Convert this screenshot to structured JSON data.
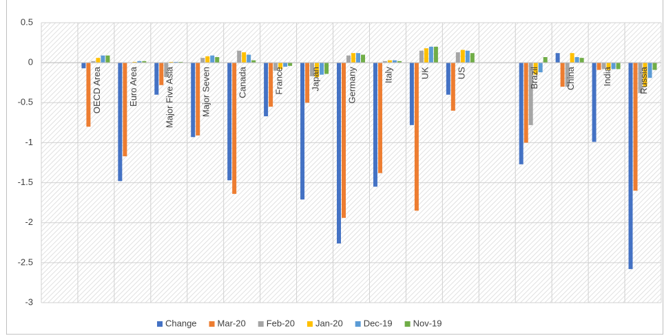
{
  "chart_data": {
    "type": "bar",
    "categories": [
      null,
      "OECD Area",
      "Euro Area",
      "Major Five Asia",
      "Major Seven",
      "Canada",
      "France",
      "Japan",
      "Germany",
      "Italy",
      "UK",
      "US",
      null,
      "Brazil",
      "China",
      "India",
      "Russia"
    ],
    "series": [
      {
        "name": "Change",
        "color": "#4472c4",
        "values": [
          null,
          -0.07,
          -1.48,
          -0.4,
          -0.93,
          -1.47,
          -0.67,
          -1.71,
          -2.26,
          -1.55,
          -0.78,
          -0.4,
          null,
          -1.27,
          0.12,
          -0.99,
          -2.58
        ]
      },
      {
        "name": "Mar-20",
        "color": "#ed7d31",
        "values": [
          null,
          -0.8,
          -1.17,
          -0.28,
          -0.91,
          -1.64,
          -0.55,
          -0.5,
          -1.94,
          -1.38,
          -1.85,
          -0.6,
          null,
          -1.0,
          -0.3,
          -0.09,
          -1.6
        ]
      },
      {
        "name": "Feb-20",
        "color": "#a5a5a5",
        "values": [
          null,
          0.02,
          0.0,
          -0.18,
          0.06,
          0.15,
          -0.1,
          -0.17,
          0.09,
          0.02,
          0.15,
          0.13,
          null,
          -0.78,
          -0.3,
          -0.08,
          -0.38
        ]
      },
      {
        "name": "Jan-20",
        "color": "#ffc000",
        "values": [
          null,
          0.06,
          0.01,
          0.01,
          0.08,
          0.13,
          -0.08,
          -0.18,
          0.12,
          0.03,
          0.18,
          0.16,
          null,
          -0.15,
          0.12,
          -0.09,
          -0.3
        ]
      },
      {
        "name": "Dec-19",
        "color": "#5b9bd5",
        "values": [
          null,
          0.09,
          0.02,
          0.01,
          0.09,
          0.1,
          -0.05,
          -0.15,
          0.12,
          0.03,
          0.2,
          0.15,
          null,
          -0.12,
          0.07,
          -0.08,
          -0.19
        ]
      },
      {
        "name": "Nov-19",
        "color": "#70ad47",
        "values": [
          null,
          0.09,
          0.02,
          0.01,
          0.07,
          0.03,
          -0.04,
          -0.14,
          0.1,
          0.02,
          0.2,
          0.12,
          null,
          0.07,
          0.06,
          -0.08,
          -0.09
        ]
      }
    ],
    "ylim": [
      -3,
      0.5
    ],
    "yticks": [
      0.5,
      0,
      -0.5,
      -1,
      -1.5,
      -2,
      -2.5,
      -3
    ],
    "grid": true,
    "legend": "bottom"
  }
}
